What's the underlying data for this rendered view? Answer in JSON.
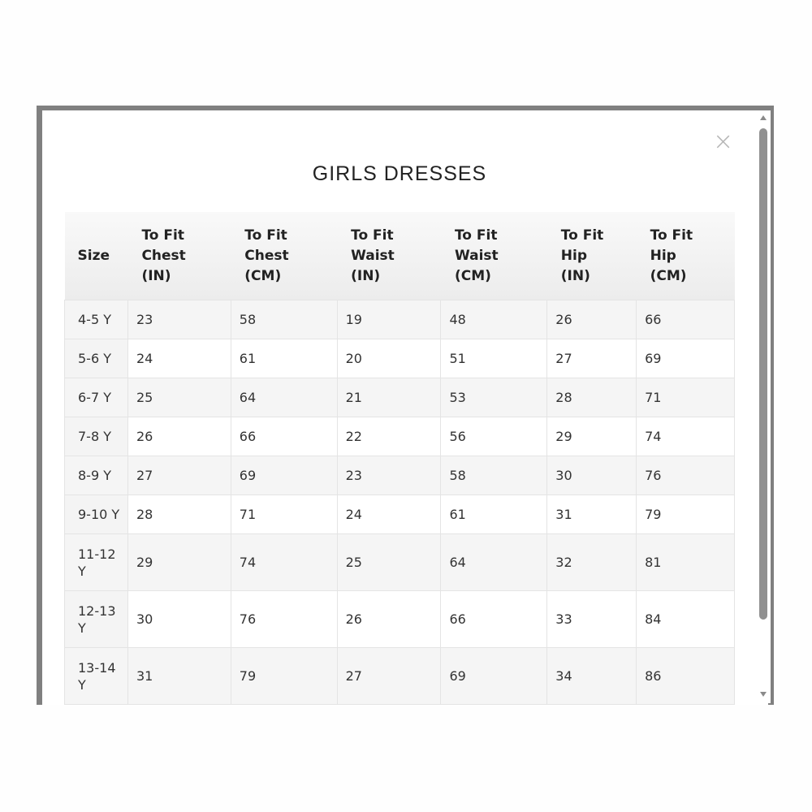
{
  "modal": {
    "title": "GIRLS DRESSES",
    "close_icon": "×",
    "columns": [
      [
        "Size"
      ],
      [
        "To Fit",
        "Chest",
        "(IN)"
      ],
      [
        "To Fit",
        "Chest",
        "(CM)"
      ],
      [
        "To Fit",
        "Waist",
        "(IN)"
      ],
      [
        "To Fit",
        "Waist",
        "(CM)"
      ],
      [
        "To Fit",
        "Hip",
        "(IN)"
      ],
      [
        "To Fit",
        "Hip",
        "(CM)"
      ]
    ],
    "rows": [
      [
        "4-5 Y",
        "23",
        "58",
        "19",
        "48",
        "26",
        "66"
      ],
      [
        "5-6 Y",
        "24",
        "61",
        "20",
        "51",
        "27",
        "69"
      ],
      [
        "6-7 Y",
        "25",
        "64",
        "21",
        "53",
        "28",
        "71"
      ],
      [
        "7-8 Y",
        "26",
        "66",
        "22",
        "56",
        "29",
        "74"
      ],
      [
        "8-9 Y",
        "27",
        "69",
        "23",
        "58",
        "30",
        "76"
      ],
      [
        "9-10 Y",
        "28",
        "71",
        "24",
        "61",
        "31",
        "79"
      ],
      [
        "11-12 Y",
        "29",
        "74",
        "25",
        "64",
        "32",
        "81"
      ],
      [
        "12-13 Y",
        "30",
        "76",
        "26",
        "66",
        "33",
        "84"
      ],
      [
        "13-14 Y",
        "31",
        "79",
        "27",
        "69",
        "34",
        "86"
      ]
    ]
  }
}
